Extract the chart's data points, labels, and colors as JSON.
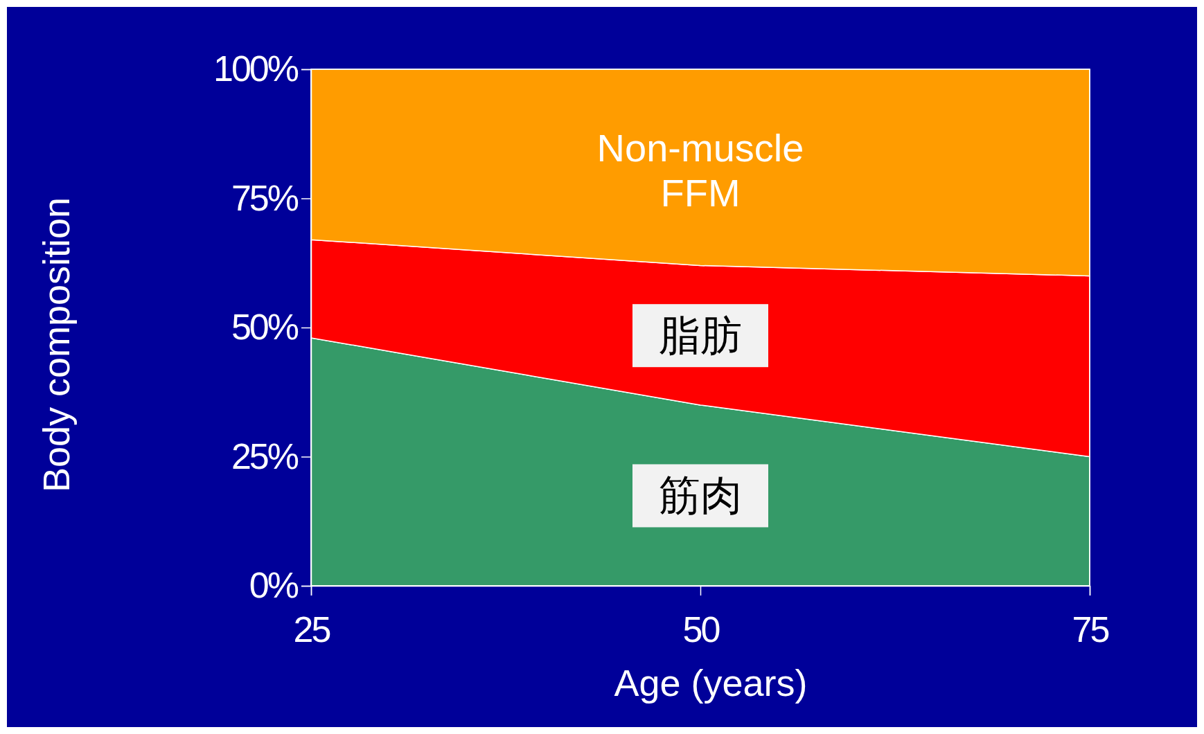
{
  "chart_data": {
    "type": "area",
    "stacked": true,
    "xlabel": "Age (years)",
    "ylabel": "Body composition",
    "x": [
      25,
      50,
      75
    ],
    "xlim": [
      25,
      75
    ],
    "xticks": [
      25,
      50,
      75
    ],
    "ylim": [
      0,
      100
    ],
    "yticks": [
      {
        "value": 0,
        "label": "0%"
      },
      {
        "value": 25,
        "label": "25%"
      },
      {
        "value": 50,
        "label": "50%"
      },
      {
        "value": 75,
        "label": "75%"
      },
      {
        "value": 100,
        "label": "100%"
      }
    ],
    "series": [
      {
        "name": "筋肉",
        "color": "#359a68",
        "values": [
          48,
          35,
          25
        ]
      },
      {
        "name": "脂肪",
        "color": "#ff0000",
        "values": [
          19,
          27,
          35
        ]
      },
      {
        "name": "Non-muscle FFM",
        "color": "#ff9c00",
        "values": [
          33,
          38,
          40
        ]
      }
    ]
  }
}
